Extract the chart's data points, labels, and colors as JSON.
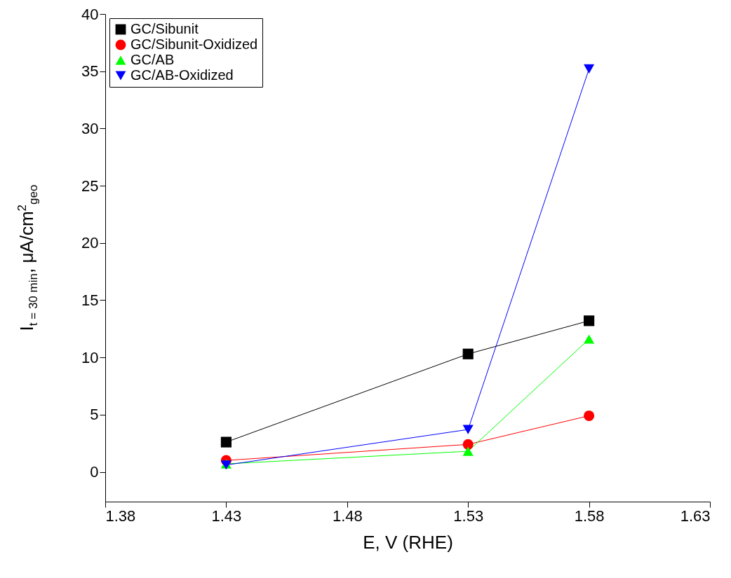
{
  "chart_data": {
    "type": "line",
    "xlabel": "E, V (RHE)",
    "ylabel": "I$_{t = 30 min}$, μA/cm$^{2}$$_{geo}$",
    "x": [
      1.43,
      1.53,
      1.58
    ],
    "series": [
      {
        "name": "GC/Sibunit",
        "color": "#000000",
        "marker": "square",
        "values": [
          2.6,
          10.3,
          13.2
        ]
      },
      {
        "name": "GC/Sibunit-Oxidized",
        "color": "#ff0000",
        "marker": "circle",
        "values": [
          1.0,
          2.4,
          4.9
        ]
      },
      {
        "name": "GC/AB",
        "color": "#00ff00",
        "marker": "triangle",
        "values": [
          0.7,
          1.8,
          11.6
        ]
      },
      {
        "name": "GC/AB-Oxidized",
        "color": "#0000ff",
        "marker": "triangle-down",
        "values": [
          0.6,
          3.7,
          35.2
        ]
      }
    ],
    "xlim": [
      1.38,
      1.63
    ],
    "xticks": [
      1.38,
      1.43,
      1.48,
      1.53,
      1.58,
      1.63
    ],
    "ylim": [
      -2.6,
      40
    ],
    "yticks": [
      0,
      5,
      10,
      15,
      20,
      25,
      30,
      35,
      40
    ],
    "grid": false,
    "legend": "top left",
    "line_style": "solid"
  }
}
